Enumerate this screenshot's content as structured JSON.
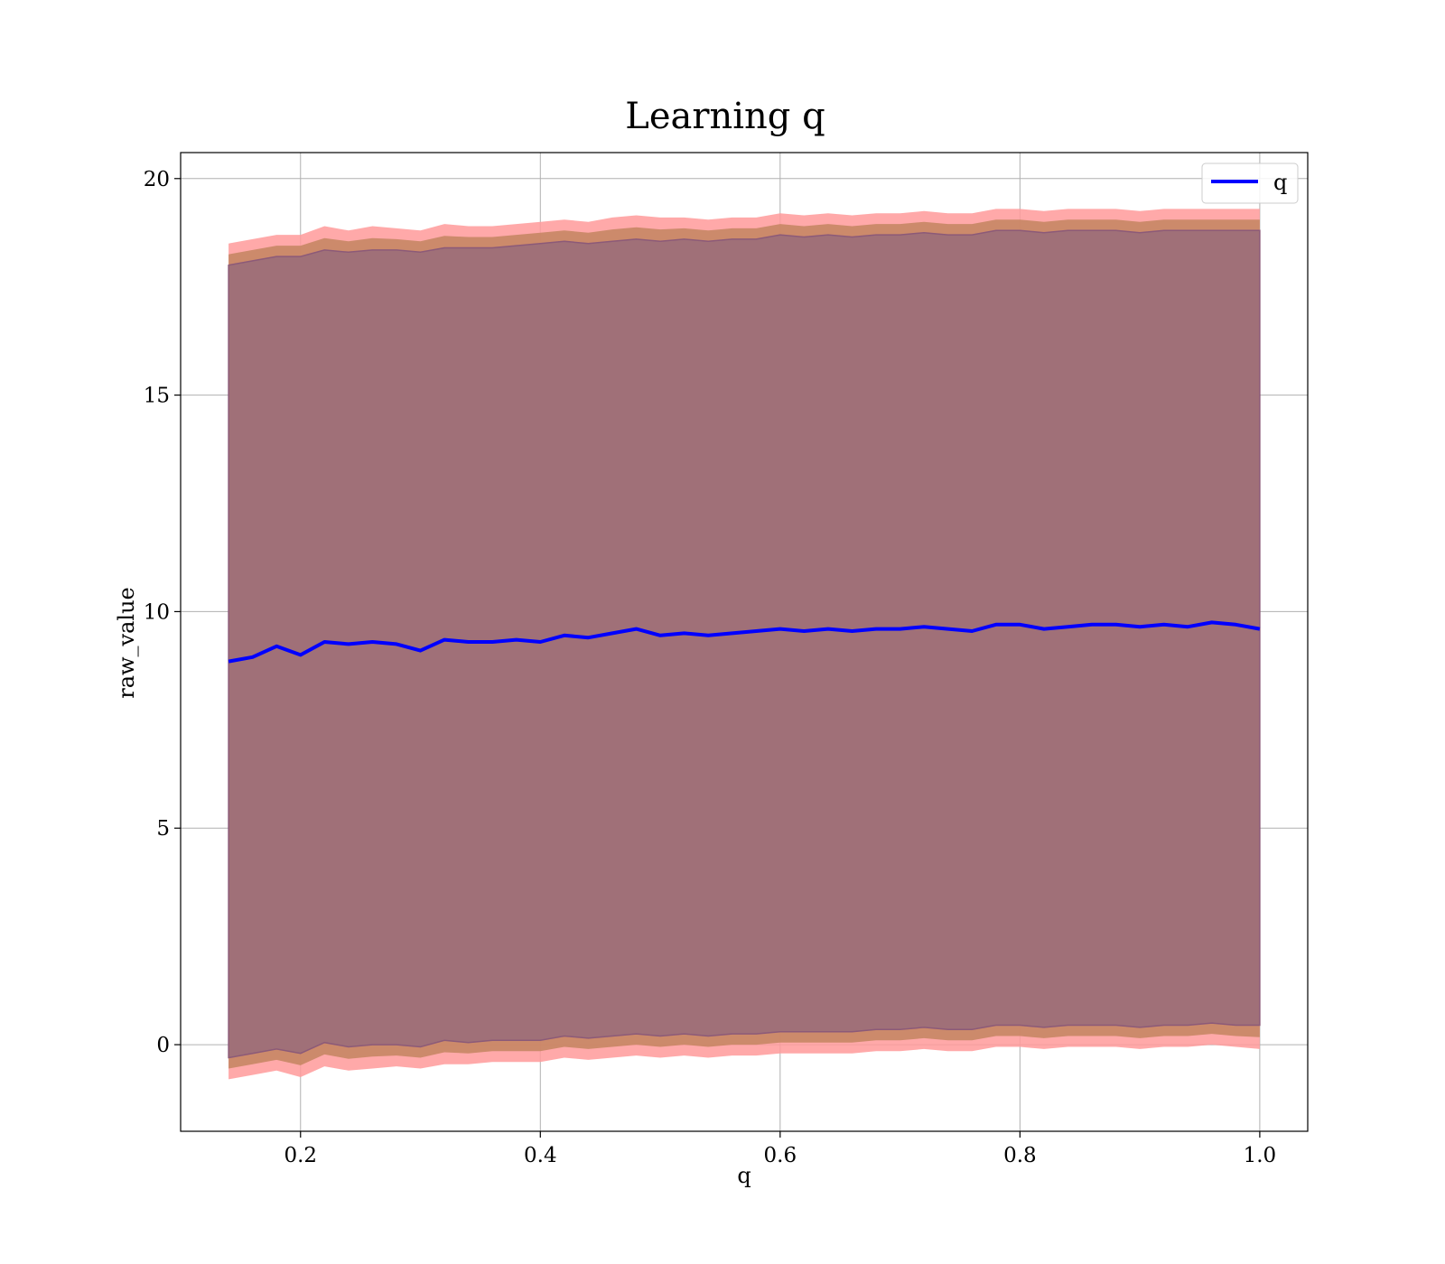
{
  "chart_data": {
    "type": "line",
    "title": "Learning q",
    "xlabel": "q",
    "ylabel": "raw_value",
    "xlim": [
      0.1,
      1.04
    ],
    "ylim": [
      -2,
      20.6
    ],
    "xticks": [
      0.2,
      0.4,
      0.6,
      0.8,
      1.0
    ],
    "xtick_labels": [
      "0.2",
      "0.4",
      "0.6",
      "0.8",
      "1.0"
    ],
    "yticks": [
      0,
      5,
      10,
      15,
      20
    ],
    "ytick_labels": [
      "0",
      "5",
      "10",
      "15",
      "20"
    ],
    "grid": true,
    "legend": {
      "position": "top-right",
      "entries": [
        "q"
      ]
    },
    "colors": {
      "line": "#0000ff",
      "band_outer": "#ff9a9a",
      "band_mid": "#c68664",
      "band_inner": "#a07078",
      "band_edge": "#8c5a78",
      "grid": "#b0b0b0"
    },
    "series": [
      {
        "name": "q",
        "x": [
          0.14,
          0.16,
          0.18,
          0.2,
          0.22,
          0.24,
          0.26,
          0.28,
          0.3,
          0.32,
          0.34,
          0.36,
          0.38,
          0.4,
          0.42,
          0.44,
          0.46,
          0.48,
          0.5,
          0.52,
          0.54,
          0.56,
          0.58,
          0.6,
          0.62,
          0.64,
          0.66,
          0.68,
          0.7,
          0.72,
          0.74,
          0.76,
          0.78,
          0.8,
          0.82,
          0.84,
          0.86,
          0.88,
          0.9,
          0.92,
          0.94,
          0.96,
          0.98,
          1.0
        ],
        "y": [
          8.85,
          8.95,
          9.2,
          9.0,
          9.3,
          9.25,
          9.3,
          9.25,
          9.1,
          9.35,
          9.3,
          9.3,
          9.35,
          9.3,
          9.45,
          9.4,
          9.5,
          9.6,
          9.45,
          9.5,
          9.45,
          9.5,
          9.55,
          9.6,
          9.55,
          9.6,
          9.55,
          9.6,
          9.6,
          9.65,
          9.6,
          9.55,
          9.7,
          9.7,
          9.6,
          9.65,
          9.7,
          9.7,
          9.65,
          9.7,
          9.65,
          9.75,
          9.7,
          9.6
        ],
        "band_upper_outer": [
          18.5,
          18.6,
          18.7,
          18.7,
          18.9,
          18.8,
          18.9,
          18.85,
          18.8,
          18.95,
          18.9,
          18.9,
          18.95,
          19.0,
          19.05,
          19.0,
          19.1,
          19.15,
          19.1,
          19.1,
          19.05,
          19.1,
          19.1,
          19.2,
          19.15,
          19.2,
          19.15,
          19.2,
          19.2,
          19.25,
          19.2,
          19.2,
          19.3,
          19.3,
          19.25,
          19.3,
          19.3,
          19.3,
          19.25,
          19.3,
          19.3,
          19.3,
          19.3,
          19.3
        ],
        "band_upper_inner": [
          18.0,
          18.1,
          18.2,
          18.2,
          18.35,
          18.3,
          18.35,
          18.35,
          18.3,
          18.4,
          18.4,
          18.4,
          18.45,
          18.5,
          18.55,
          18.5,
          18.55,
          18.6,
          18.55,
          18.6,
          18.55,
          18.6,
          18.6,
          18.7,
          18.65,
          18.7,
          18.65,
          18.7,
          18.7,
          18.75,
          18.7,
          18.7,
          18.8,
          18.8,
          18.75,
          18.8,
          18.8,
          18.8,
          18.75,
          18.8,
          18.8,
          18.8,
          18.8,
          18.8
        ],
        "band_lower_inner": [
          -0.3,
          -0.2,
          -0.1,
          -0.2,
          0.05,
          -0.05,
          0.0,
          0.0,
          -0.05,
          0.1,
          0.05,
          0.1,
          0.1,
          0.1,
          0.2,
          0.15,
          0.2,
          0.25,
          0.2,
          0.25,
          0.2,
          0.25,
          0.25,
          0.3,
          0.3,
          0.3,
          0.3,
          0.35,
          0.35,
          0.4,
          0.35,
          0.35,
          0.45,
          0.45,
          0.4,
          0.45,
          0.45,
          0.45,
          0.4,
          0.45,
          0.45,
          0.5,
          0.45,
          0.45
        ],
        "band_lower_outer": [
          -0.8,
          -0.7,
          -0.6,
          -0.75,
          -0.5,
          -0.6,
          -0.55,
          -0.5,
          -0.55,
          -0.45,
          -0.45,
          -0.4,
          -0.4,
          -0.4,
          -0.3,
          -0.35,
          -0.3,
          -0.25,
          -0.3,
          -0.25,
          -0.3,
          -0.25,
          -0.25,
          -0.2,
          -0.2,
          -0.2,
          -0.2,
          -0.15,
          -0.15,
          -0.1,
          -0.15,
          -0.15,
          -0.05,
          -0.05,
          -0.1,
          -0.05,
          -0.05,
          -0.05,
          -0.1,
          -0.05,
          -0.05,
          0.0,
          -0.05,
          -0.1
        ]
      }
    ]
  }
}
